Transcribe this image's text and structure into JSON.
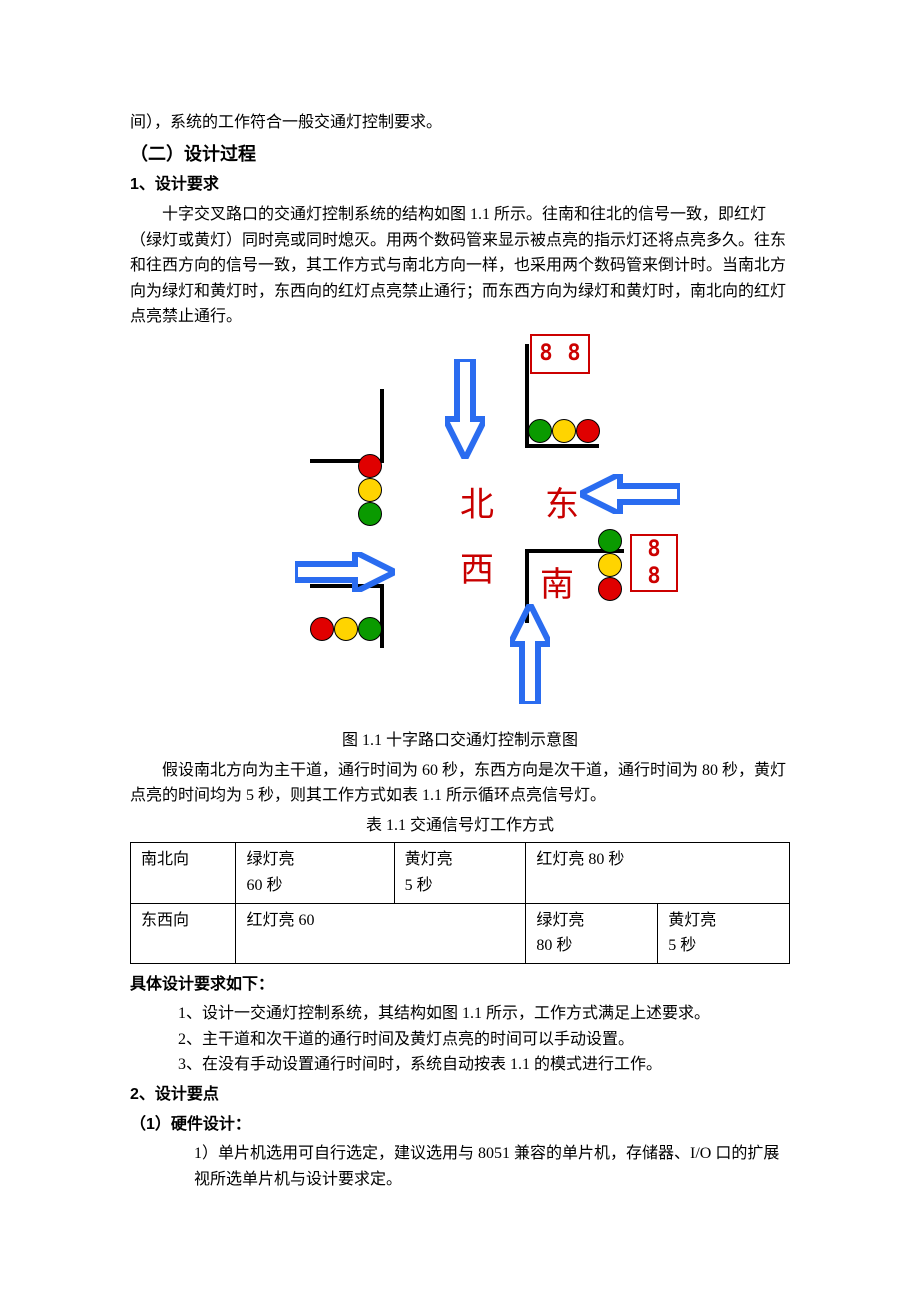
{
  "intro_tail": "间），系统的工作符合一般交通灯控制要求。",
  "sec2_title": "（二）设计过程",
  "req_heading": "1、设计要求",
  "req_para": "十字交叉路口的交通灯控制系统的结构如图 1.1 所示。往南和往北的信号一致，即红灯（绿灯或黄灯）同时亮或同时熄灭。用两个数码管来显示被点亮的指示灯还将点亮多久。往东和往西方向的信号一致，其工作方式与南北方向一样，也采用两个数码管来倒计时。当南北方向为绿灯和黄灯时，东西向的红灯点亮禁止通行；而东西方向为绿灯和黄灯时，南北向的红灯点亮禁止通行。",
  "diagram": {
    "labels": {
      "north": "北",
      "east": "东",
      "west": "西",
      "south": "南"
    },
    "colors": {
      "green": "#0a9a00",
      "yellow": "#ffd400",
      "red": "#e00000",
      "arrow": "#2a6cf0"
    },
    "light_d": 24
  },
  "fig_caption": "图 1.1  十字路口交通灯控制示意图",
  "assume_para": "假设南北方向为主干道，通行时间为 60 秒，东西方向是次干道，通行时间为 80 秒，黄灯点亮的时间均为 5 秒，则其工作方式如表 1.1 所示循环点亮信号灯。",
  "table_caption": "表 1.1    交通信号灯工作方式",
  "table": {
    "r1": [
      "南北向",
      "绿灯亮\n60 秒",
      "黄灯亮\n5 秒",
      "红灯亮 80 秒"
    ],
    "r2": [
      "东西向",
      "红灯亮 60",
      "绿灯亮\n80 秒",
      "黄灯亮\n5 秒"
    ]
  },
  "detail_heading": "具体设计要求如下：",
  "detail_items": [
    "1、设计一交通灯控制系统，其结构如图 1.1 所示，工作方式满足上述要求。",
    "2、主干道和次干道的通行时间及黄灯点亮的时间可以手动设置。",
    "3、在没有手动设置通行时间时，系统自动按表 1.1 的模式进行工作。"
  ],
  "keypoint_heading": "2、设计要点",
  "hw_heading": "（1）硬件设计：",
  "hw_item1": "1）单片机选用可自行选定，建议选用与 8051 兼容的单片机，存储器、I/O 口的扩展视所选单片机与设计要求定。"
}
